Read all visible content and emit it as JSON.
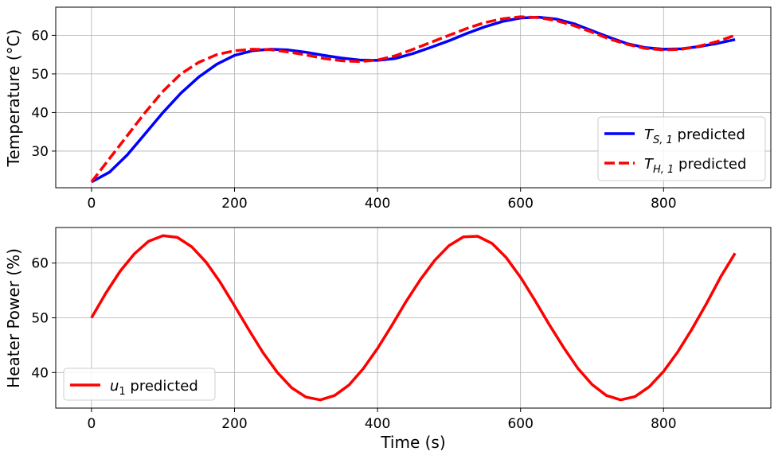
{
  "chart_data": [
    {
      "type": "line",
      "title": "",
      "xlabel": "",
      "ylabel": "Temperature (°C)",
      "xlim": [
        -50,
        950
      ],
      "ylim": [
        20.5,
        67.3
      ],
      "xticks": [
        0,
        200,
        400,
        600,
        800
      ],
      "yticks": [
        30,
        40,
        50,
        60
      ],
      "grid": true,
      "legend": "lower-right",
      "series": [
        {
          "name_main": "T",
          "name_sub": "S, 1",
          "name_suffix": " predicted",
          "color": "#0000ff",
          "style": "solid",
          "x": [
            0,
            25,
            50,
            75,
            100,
            125,
            150,
            175,
            200,
            225,
            250,
            275,
            300,
            325,
            350,
            375,
            400,
            425,
            450,
            475,
            500,
            525,
            550,
            575,
            600,
            625,
            650,
            675,
            700,
            725,
            750,
            775,
            800,
            825,
            850,
            875,
            900
          ],
          "y": [
            22.0,
            24.5,
            29.0,
            34.5,
            40.0,
            45.0,
            49.2,
            52.5,
            54.8,
            56.0,
            56.4,
            56.2,
            55.6,
            54.8,
            54.1,
            53.6,
            53.5,
            54.0,
            55.3,
            56.9,
            58.6,
            60.5,
            62.2,
            63.6,
            64.5,
            64.7,
            64.2,
            63.0,
            61.2,
            59.4,
            57.8,
            56.8,
            56.4,
            56.5,
            57.1,
            57.9,
            58.9
          ]
        },
        {
          "name_main": "T",
          "name_sub": "H, 1",
          "name_suffix": " predicted",
          "color": "#ff0000",
          "style": "dashed",
          "x": [
            0,
            25,
            50,
            75,
            100,
            125,
            150,
            175,
            200,
            225,
            250,
            275,
            300,
            325,
            350,
            375,
            400,
            425,
            450,
            475,
            500,
            525,
            550,
            575,
            600,
            625,
            650,
            675,
            700,
            725,
            750,
            775,
            800,
            825,
            850,
            875,
            900
          ],
          "y": [
            22.0,
            28.0,
            34.0,
            40.0,
            45.5,
            50.0,
            53.0,
            55.0,
            56.0,
            56.4,
            56.3,
            55.7,
            54.9,
            54.0,
            53.4,
            53.2,
            53.6,
            54.7,
            56.4,
            58.2,
            60.0,
            61.8,
            63.3,
            64.3,
            64.8,
            64.6,
            63.8,
            62.5,
            60.8,
            59.0,
            57.6,
            56.6,
            56.2,
            56.4,
            57.2,
            58.4,
            60.0
          ]
        }
      ]
    },
    {
      "type": "line",
      "title": "",
      "xlabel": "Time (s)",
      "ylabel": "Heater Power (%)",
      "xlim": [
        -50,
        950
      ],
      "ylim": [
        33.5,
        66.5
      ],
      "xticks": [
        0,
        200,
        400,
        600,
        800
      ],
      "yticks": [
        40,
        50,
        60
      ],
      "grid": true,
      "legend": "lower-left",
      "series": [
        {
          "name_main": "u",
          "name_sub": "1",
          "name_suffix": " predicted",
          "color": "#ff0000",
          "style": "solid",
          "x": [
            0,
            20,
            40,
            60,
            80,
            100,
            120,
            140,
            160,
            180,
            200,
            220,
            240,
            260,
            280,
            300,
            320,
            340,
            360,
            380,
            400,
            420,
            440,
            460,
            480,
            500,
            520,
            540,
            560,
            580,
            600,
            620,
            640,
            660,
            680,
            700,
            720,
            740,
            760,
            780,
            800,
            820,
            840,
            860,
            880,
            900
          ],
          "y": [
            50.0,
            54.5,
            58.5,
            61.7,
            64.0,
            65.0,
            64.7,
            63.0,
            60.2,
            56.5,
            52.2,
            47.8,
            43.6,
            40.0,
            37.2,
            35.5,
            35.0,
            35.8,
            37.7,
            40.7,
            44.4,
            48.6,
            53.0,
            57.0,
            60.5,
            63.2,
            64.8,
            64.9,
            63.6,
            61.0,
            57.4,
            53.2,
            48.8,
            44.6,
            40.8,
            37.8,
            35.8,
            35.0,
            35.6,
            37.4,
            40.2,
            43.8,
            48.0,
            52.6,
            57.5,
            61.8
          ]
        }
      ]
    }
  ]
}
